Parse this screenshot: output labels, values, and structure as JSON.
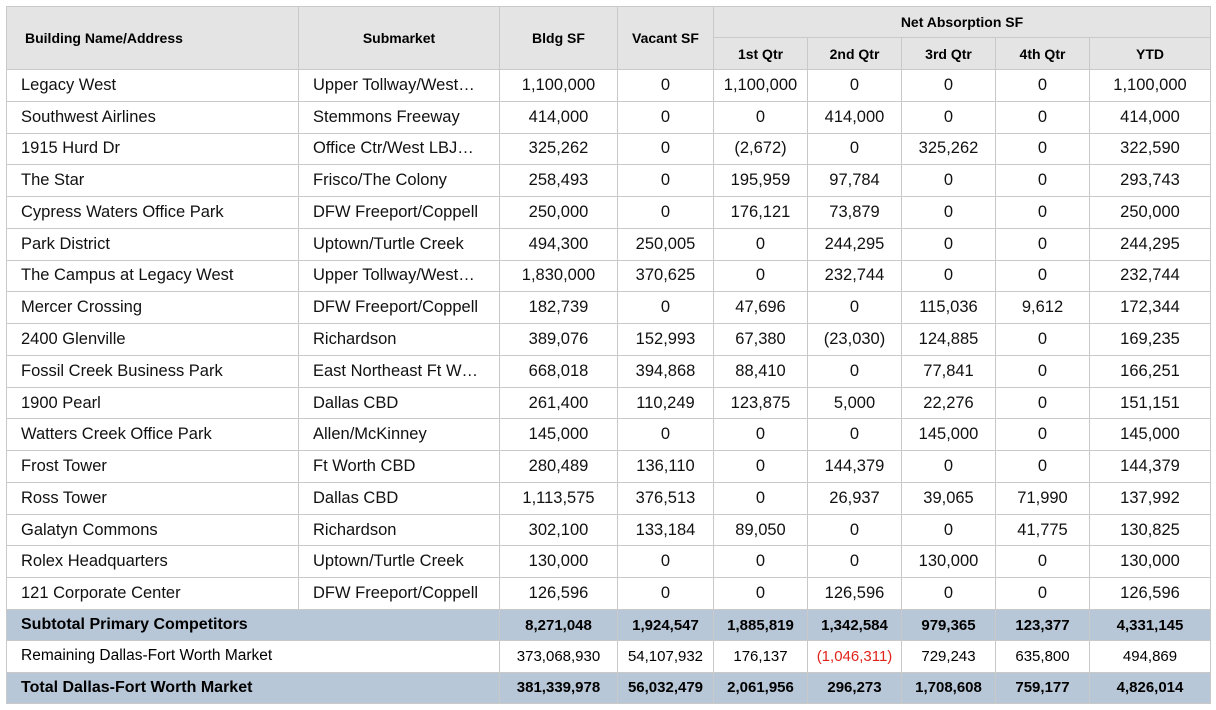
{
  "header": {
    "building": "Building Name/Address",
    "submarket": "Submarket",
    "bldg_sf": "Bldg SF",
    "vacant_sf": "Vacant SF",
    "net_absorption": "Net Absorption SF",
    "q1": "1st Qtr",
    "q2": "2nd Qtr",
    "q3": "3rd Qtr",
    "q4": "4th Qtr",
    "ytd": "YTD"
  },
  "rows": [
    {
      "name": "Legacy West",
      "submarket": "Upper Tollway/West…",
      "bldg": "1,100,000",
      "vacant": "0",
      "q1": "1,100,000",
      "q2": "0",
      "q3": "0",
      "q4": "0",
      "ytd": "1,100,000"
    },
    {
      "name": "Southwest Airlines",
      "submarket": "Stemmons Freeway",
      "bldg": "414,000",
      "vacant": "0",
      "q1": "0",
      "q2": "414,000",
      "q3": "0",
      "q4": "0",
      "ytd": "414,000"
    },
    {
      "name": "1915 Hurd Dr",
      "submarket": "Office Ctr/West LBJ…",
      "bldg": "325,262",
      "vacant": "0",
      "q1": "(2,672)",
      "q2": "0",
      "q3": "325,262",
      "q4": "0",
      "ytd": "322,590"
    },
    {
      "name": "The Star",
      "submarket": "Frisco/The Colony",
      "bldg": "258,493",
      "vacant": "0",
      "q1": "195,959",
      "q2": "97,784",
      "q3": "0",
      "q4": "0",
      "ytd": "293,743"
    },
    {
      "name": "Cypress Waters Office Park",
      "submarket": "DFW Freeport/Coppell",
      "bldg": "250,000",
      "vacant": "0",
      "q1": "176,121",
      "q2": "73,879",
      "q3": "0",
      "q4": "0",
      "ytd": "250,000"
    },
    {
      "name": "Park District",
      "submarket": "Uptown/Turtle Creek",
      "bldg": "494,300",
      "vacant": "250,005",
      "q1": "0",
      "q2": "244,295",
      "q3": "0",
      "q4": "0",
      "ytd": "244,295"
    },
    {
      "name": "The Campus at Legacy West",
      "submarket": "Upper Tollway/West…",
      "bldg": "1,830,000",
      "vacant": "370,625",
      "q1": "0",
      "q2": "232,744",
      "q3": "0",
      "q4": "0",
      "ytd": "232,744"
    },
    {
      "name": "Mercer Crossing",
      "submarket": "DFW Freeport/Coppell",
      "bldg": "182,739",
      "vacant": "0",
      "q1": "47,696",
      "q2": "0",
      "q3": "115,036",
      "q4": "9,612",
      "ytd": "172,344"
    },
    {
      "name": "2400 Glenville",
      "submarket": "Richardson",
      "bldg": "389,076",
      "vacant": "152,993",
      "q1": "67,380",
      "q2": "(23,030)",
      "q3": "124,885",
      "q4": "0",
      "ytd": "169,235"
    },
    {
      "name": "Fossil Creek Business Park",
      "submarket": "East Northeast Ft W…",
      "bldg": "668,018",
      "vacant": "394,868",
      "q1": "88,410",
      "q2": "0",
      "q3": "77,841",
      "q4": "0",
      "ytd": "166,251"
    },
    {
      "name": "1900 Pearl",
      "submarket": "Dallas CBD",
      "bldg": "261,400",
      "vacant": "110,249",
      "q1": "123,875",
      "q2": "5,000",
      "q3": "22,276",
      "q4": "0",
      "ytd": "151,151"
    },
    {
      "name": "Watters Creek Office Park",
      "submarket": "Allen/McKinney",
      "bldg": "145,000",
      "vacant": "0",
      "q1": "0",
      "q2": "0",
      "q3": "145,000",
      "q4": "0",
      "ytd": "145,000"
    },
    {
      "name": "Frost Tower",
      "submarket": "Ft Worth CBD",
      "bldg": "280,489",
      "vacant": "136,110",
      "q1": "0",
      "q2": "144,379",
      "q3": "0",
      "q4": "0",
      "ytd": "144,379"
    },
    {
      "name": "Ross Tower",
      "submarket": "Dallas CBD",
      "bldg": "1,113,575",
      "vacant": "376,513",
      "q1": "0",
      "q2": "26,937",
      "q3": "39,065",
      "q4": "71,990",
      "ytd": "137,992"
    },
    {
      "name": "Galatyn Commons",
      "submarket": "Richardson",
      "bldg": "302,100",
      "vacant": "133,184",
      "q1": "89,050",
      "q2": "0",
      "q3": "0",
      "q4": "41,775",
      "ytd": "130,825"
    },
    {
      "name": "Rolex Headquarters",
      "submarket": "Uptown/Turtle Creek",
      "bldg": "130,000",
      "vacant": "0",
      "q1": "0",
      "q2": "0",
      "q3": "130,000",
      "q4": "0",
      "ytd": "130,000"
    },
    {
      "name": "121 Corporate Center",
      "submarket": "DFW Freeport/Coppell",
      "bldg": "126,596",
      "vacant": "0",
      "q1": "0",
      "q2": "126,596",
      "q3": "0",
      "q4": "0",
      "ytd": "126,596"
    }
  ],
  "subtotal": {
    "label": "Subtotal Primary Competitors",
    "bldg": "8,271,048",
    "vacant": "1,924,547",
    "q1": "1,885,819",
    "q2": "1,342,584",
    "q3": "979,365",
    "q4": "123,377",
    "ytd": "4,331,145"
  },
  "remaining": {
    "label": "Remaining Dallas-Fort Worth Market",
    "bldg": "373,068,930",
    "vacant": "54,107,932",
    "q1": "176,137",
    "q2": "(1,046,311)",
    "q3": "729,243",
    "q4": "635,800",
    "ytd": "494,869"
  },
  "total": {
    "label": "Total Dallas-Fort Worth Market",
    "bldg": "381,339,978",
    "vacant": "56,032,479",
    "q1": "2,061,956",
    "q2": "296,273",
    "q3": "1,708,608",
    "q4": "759,177",
    "ytd": "4,826,014"
  },
  "colors": {
    "header_bg": "#e4e4e4",
    "summary_bg": "#b8c7d7",
    "negative": "#e0241b"
  }
}
